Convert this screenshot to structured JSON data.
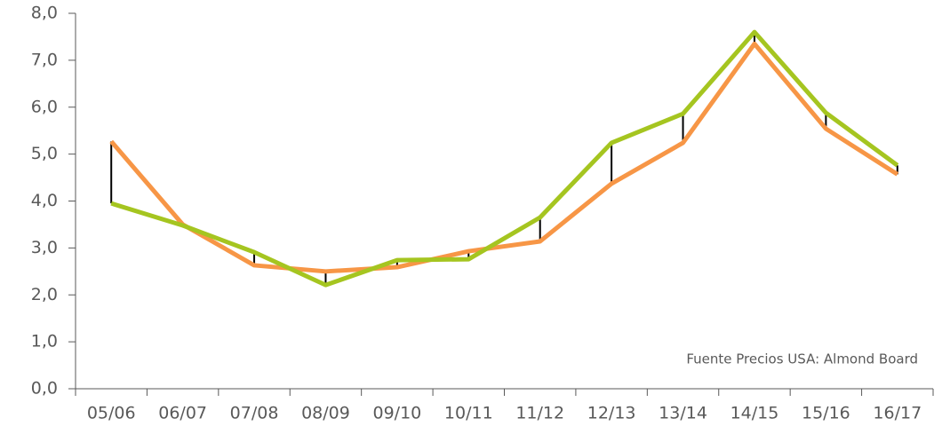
{
  "chart_data": {
    "type": "line",
    "categories": [
      "05/06",
      "06/07",
      "07/08",
      "08/09",
      "09/10",
      "10/11",
      "11/12",
      "12/13",
      "13/14",
      "14/15",
      "15/16",
      "16/17"
    ],
    "series": [
      {
        "color": "#f79646",
        "values": [
          5.27,
          3.5,
          2.63,
          2.5,
          2.59,
          2.93,
          3.14,
          4.37,
          5.24,
          7.35,
          5.54,
          4.57
        ]
      },
      {
        "color": "#a5c520",
        "values": [
          3.95,
          3.48,
          2.91,
          2.21,
          2.74,
          2.76,
          3.65,
          5.24,
          5.86,
          7.6,
          5.88,
          4.76
        ]
      }
    ],
    "high_low_lines": true,
    "ylim": [
      0,
      8
    ],
    "yticks": [
      {
        "value": 0,
        "label": "0,0"
      },
      {
        "value": 1,
        "label": "1,0"
      },
      {
        "value": 2,
        "label": "2,0"
      },
      {
        "value": 3,
        "label": "3,0"
      },
      {
        "value": 4,
        "label": "4,0"
      },
      {
        "value": 5,
        "label": "5,0"
      },
      {
        "value": 6,
        "label": "6,0"
      },
      {
        "value": 7,
        "label": "7,0"
      },
      {
        "value": 8,
        "label": "8,0"
      }
    ],
    "annotation": "Fuente Precios USA: Almond Board"
  }
}
